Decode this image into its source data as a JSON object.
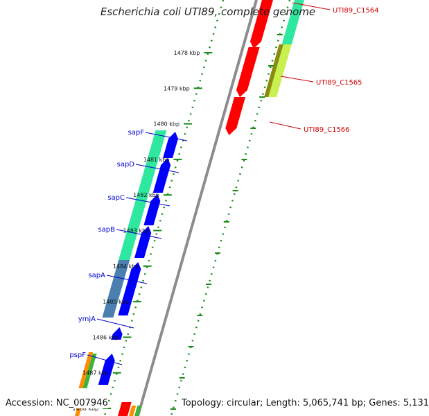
{
  "title": "Escherichia coli UTI89, complete genome",
  "footer": {
    "accession": "Accession: NC_007946",
    "summary": "Topology: circular; Length: 5,065,741 bp; Genes: 5,131"
  },
  "colors": {
    "backbone": "#8c8c8c",
    "forward_cds": "#0000ff",
    "red_feature": "#ff0000",
    "aqua_feature": "#2ee8a0",
    "steel_feature": "#4a7fb0",
    "olive_feature": "#8a8a10",
    "lime_feature": "#c8f050",
    "orange_feature": "#ff8c00",
    "green_feature": "#3cb43c",
    "tick": "#1a8a1a",
    "label_blue": "#0000cc",
    "label_red": "#cc0000"
  },
  "ticks": [
    {
      "label": "1478 kbp",
      "kbp": 1478
    },
    {
      "label": "1479 kbp",
      "kbp": 1479
    },
    {
      "label": "1480 kbp",
      "kbp": 1480
    },
    {
      "label": "1481 kbp",
      "kbp": 1481
    },
    {
      "label": "1482 kbp",
      "kbp": 1482
    },
    {
      "label": "1483 kbp",
      "kbp": 1483
    },
    {
      "label": "1484 kbp",
      "kbp": 1484
    },
    {
      "label": "1485 kbp",
      "kbp": 1485
    },
    {
      "label": "1486 kbp",
      "kbp": 1486
    },
    {
      "label": "1487 kbp",
      "kbp": 1487
    },
    {
      "label": "1488 kbp",
      "kbp": 1488
    }
  ],
  "left_labels": [
    {
      "name": "sapF"
    },
    {
      "name": "sapD"
    },
    {
      "name": "sapC"
    },
    {
      "name": "sapB"
    },
    {
      "name": "sapA"
    },
    {
      "name": "ymjA"
    },
    {
      "name": "pspF"
    }
  ],
  "right_labels": [
    {
      "name": "UTI89_C1564"
    },
    {
      "name": "UTI89_C1565"
    },
    {
      "name": "UTI89_C1566"
    }
  ]
}
